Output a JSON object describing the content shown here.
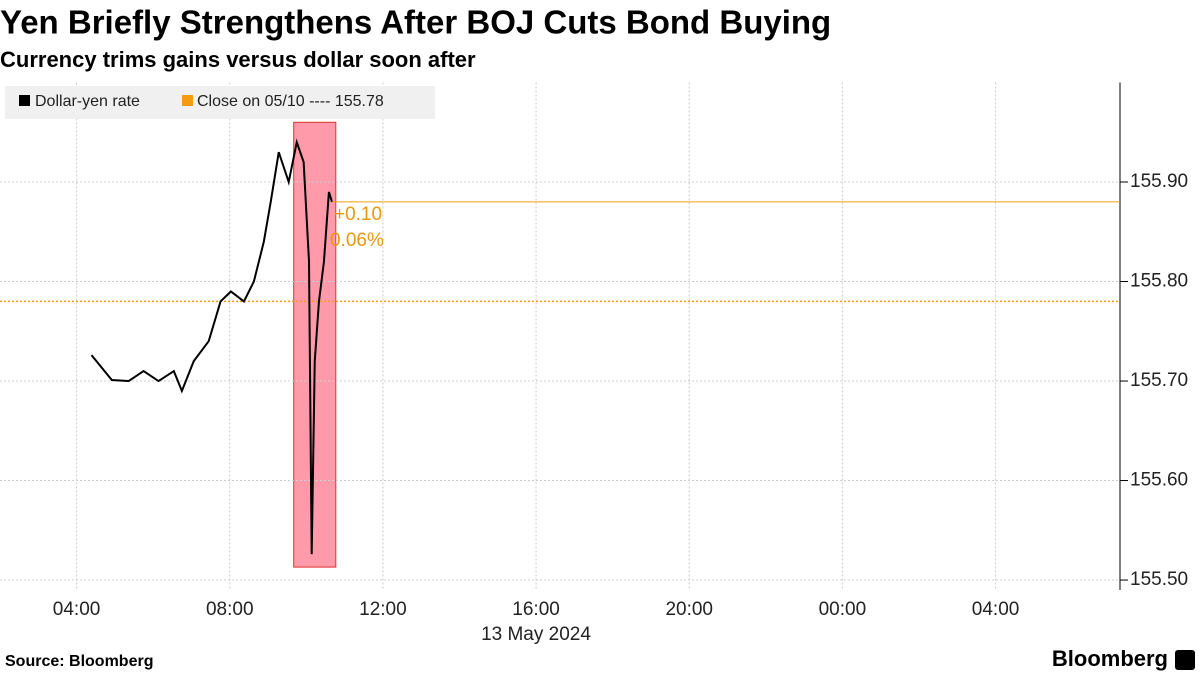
{
  "chart_data": {
    "type": "line",
    "title": "Yen Briefly Strengthens After BOJ Cuts Bond Buying",
    "subtitle": "Currency trims gains versus dollar soon after",
    "x_label": "13 May 2024",
    "source": "Source: Bloomberg",
    "brand": "Bloomberg",
    "x": [
      4.39,
      4.92,
      5.36,
      5.75,
      6.14,
      6.54,
      6.75,
      7.06,
      7.45,
      7.76,
      8.03,
      8.37,
      8.63,
      8.89,
      9.07,
      9.28,
      9.54,
      9.75,
      9.93,
      10.07,
      10.14,
      10.22,
      10.33,
      10.46,
      10.59,
      10.67
    ],
    "series": [
      {
        "name": "Dollar-yen rate",
        "color": "#000000",
        "values": [
          155.726,
          155.701,
          155.7,
          155.71,
          155.7,
          155.71,
          155.69,
          155.72,
          155.74,
          155.78,
          155.79,
          155.78,
          155.8,
          155.84,
          155.88,
          155.93,
          155.9,
          155.94,
          155.92,
          155.82,
          155.526,
          155.72,
          155.78,
          155.82,
          155.89,
          155.88
        ]
      }
    ],
    "reference": {
      "name": "Close on 05/10 ---- 155.78",
      "value": 155.78,
      "color": "#f39c12"
    },
    "highlight": {
      "x": [
        9.67,
        10.77
      ],
      "y": [
        155.513,
        155.96
      ],
      "color": "#ff9aab"
    },
    "annotations": [
      "+0.10",
      "0.06%"
    ],
    "xlim": [
      2,
      31.25
    ],
    "xticks": [
      {
        "value": 4,
        "label": "04:00"
      },
      {
        "value": 8,
        "label": "08:00"
      },
      {
        "value": 12,
        "label": "12:00"
      },
      {
        "value": 16,
        "label": "16:00"
      },
      {
        "value": 20,
        "label": "20:00"
      },
      {
        "value": 24,
        "label": "00:00"
      },
      {
        "value": 28,
        "label": "04:00"
      }
    ],
    "ylim": [
      155.49,
      156.0
    ],
    "yticks": [
      {
        "value": 155.5,
        "label": "155.50"
      },
      {
        "value": 155.6,
        "label": "155.60"
      },
      {
        "value": 155.7,
        "label": "155.70"
      },
      {
        "value": 155.8,
        "label": "155.80"
      },
      {
        "value": 155.9,
        "label": "155.90"
      }
    ],
    "grid": true
  }
}
